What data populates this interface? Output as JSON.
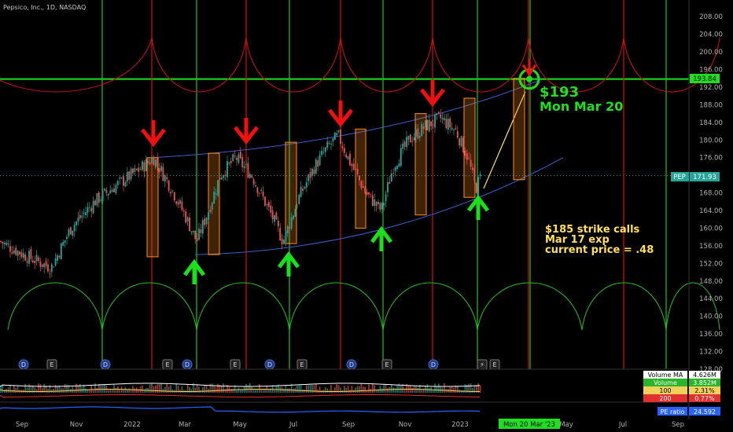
{
  "header": {
    "title": "Pepsico, Inc., 1D, NASDAQ"
  },
  "colors": {
    "bg": "#000000",
    "candle_up": "#26a69a",
    "candle_down": "#ef5350",
    "green_cycle": "#22c222",
    "red_cycle": "#d01010",
    "box": "#ff8c1a",
    "channel": "#3a5fd0",
    "annotation_green": "#1fe01f",
    "annotation_yellow": "#ffe05a"
  },
  "chart_data": {
    "type": "candlestick",
    "title": "Pepsico, Inc., 1D, NASDAQ",
    "symbol": "PEP",
    "ylim": [
      128,
      210
    ],
    "y_ticks": [
      128,
      132,
      136,
      140,
      144,
      148,
      152,
      156,
      160,
      164,
      168,
      172,
      176,
      180,
      184,
      188,
      192,
      196,
      200,
      204,
      208
    ],
    "x_labels": [
      "Sep",
      "Nov",
      "2022",
      "Mar",
      "May",
      "Jul",
      "Sep",
      "Nov",
      "2023",
      "Mar",
      "May",
      "Jul",
      "Sep"
    ],
    "current_price": {
      "label": "PEP",
      "value": "171.93"
    },
    "target_price_line": {
      "value": "193.84"
    },
    "price_path": [
      {
        "x": 0,
        "y": 157
      },
      {
        "x": 30,
        "y": 154
      },
      {
        "x": 65,
        "y": 151
      },
      {
        "x": 90,
        "y": 160
      },
      {
        "x": 120,
        "y": 166
      },
      {
        "x": 150,
        "y": 170
      },
      {
        "x": 175,
        "y": 173
      },
      {
        "x": 195,
        "y": 176
      },
      {
        "x": 215,
        "y": 170
      },
      {
        "x": 235,
        "y": 163
      },
      {
        "x": 250,
        "y": 157
      },
      {
        "x": 265,
        "y": 164
      },
      {
        "x": 280,
        "y": 172
      },
      {
        "x": 300,
        "y": 176
      },
      {
        "x": 320,
        "y": 172
      },
      {
        "x": 345,
        "y": 163
      },
      {
        "x": 360,
        "y": 157
      },
      {
        "x": 380,
        "y": 167
      },
      {
        "x": 400,
        "y": 174
      },
      {
        "x": 415,
        "y": 178
      },
      {
        "x": 430,
        "y": 181
      },
      {
        "x": 445,
        "y": 175
      },
      {
        "x": 465,
        "y": 168
      },
      {
        "x": 485,
        "y": 164
      },
      {
        "x": 500,
        "y": 174
      },
      {
        "x": 520,
        "y": 180
      },
      {
        "x": 540,
        "y": 183
      },
      {
        "x": 560,
        "y": 185
      },
      {
        "x": 580,
        "y": 182
      },
      {
        "x": 595,
        "y": 176
      },
      {
        "x": 605,
        "y": 169
      },
      {
        "x": 612,
        "y": 172
      }
    ],
    "boxes": [
      {
        "x0": 187,
        "x1": 201,
        "ylow": 153.5,
        "yhigh": 176
      },
      {
        "x0": 265,
        "x1": 279,
        "ylow": 154,
        "yhigh": 177
      },
      {
        "x0": 363,
        "x1": 377,
        "ylow": 156.5,
        "yhigh": 179.5
      },
      {
        "x0": 452,
        "x1": 465,
        "ylow": 160,
        "yhigh": 182.5
      },
      {
        "x0": 528,
        "x1": 542,
        "ylow": 163,
        "yhigh": 186
      },
      {
        "x0": 590,
        "x1": 604,
        "ylow": 167,
        "yhigh": 189.5
      },
      {
        "x0": 653,
        "x1": 667,
        "ylow": 171,
        "yhigh": 194
      }
    ],
    "down_arrows": [
      195,
      313,
      433,
      550
    ],
    "up_arrows": [
      247,
      367,
      485,
      608
    ],
    "green_vlines": [
      130,
      250,
      368,
      487,
      607,
      674,
      847
    ],
    "red_vlines": [
      193,
      313,
      433,
      550,
      672,
      793
    ],
    "events": [
      {
        "x": 30,
        "label": "D"
      },
      {
        "x": 66,
        "label": "E"
      },
      {
        "x": 134,
        "label": "D"
      },
      {
        "x": 213,
        "label": "E"
      },
      {
        "x": 238,
        "label": "D"
      },
      {
        "x": 299,
        "label": "E"
      },
      {
        "x": 343,
        "label": "D"
      },
      {
        "x": 384,
        "label": "E"
      },
      {
        "x": 447,
        "label": "D"
      },
      {
        "x": 492,
        "label": "E"
      },
      {
        "x": 551,
        "label": "D"
      },
      {
        "x": 613,
        "label": "⚡"
      },
      {
        "x": 629,
        "label": "E"
      }
    ]
  },
  "annotations": {
    "target_price": "$193",
    "target_date": "Mon Mar 20",
    "note_line1": "$185 strike calls",
    "note_line2": "Mar 17 exp",
    "note_line3": "current price = .48"
  },
  "indicators": {
    "volume_ma": {
      "label": "Volume MA",
      "value": "4.626M"
    },
    "volume": {
      "label": "Volume",
      "value": "3.852M"
    },
    "ma100": {
      "label": "100",
      "value": "2.31%"
    },
    "ma200": {
      "label": "200",
      "value": "0.77%"
    },
    "pe_ratio": {
      "label": "PE ratio",
      "value": "24.592"
    }
  },
  "crosshair_date": "Mon 20 Mar '23"
}
